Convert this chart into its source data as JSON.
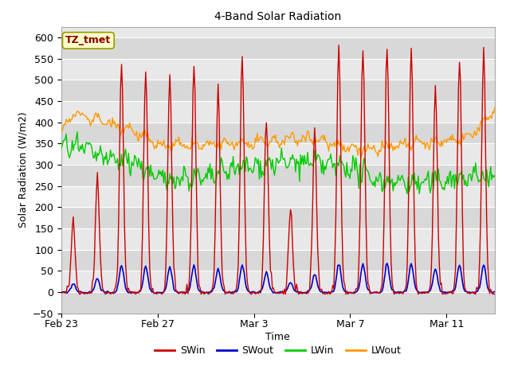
{
  "title": "4-Band Solar Radiation",
  "xlabel": "Time",
  "ylabel": "Solar Radiation (W/m2)",
  "ylim": [
    -50,
    625
  ],
  "yticks": [
    -50,
    0,
    50,
    100,
    150,
    200,
    250,
    300,
    350,
    400,
    450,
    500,
    550,
    600
  ],
  "xtick_labels": [
    "Feb 23",
    "Feb 27",
    "Mar 3",
    "Mar 7",
    "Mar 11"
  ],
  "xtick_positions": [
    0,
    4,
    8,
    12,
    16
  ],
  "annotation_text": "TZ_tmet",
  "annotation_bg": "#ffffcc",
  "annotation_border": "#999900",
  "colors": {
    "SWin": "#cc0000",
    "SWout": "#0000cc",
    "LWin": "#00cc00",
    "LWout": "#ff9900"
  },
  "fig_facecolor": "#ffffff",
  "ax_facecolor": "#e8e8e8",
  "grid_color": "#ffffff",
  "n_days": 18,
  "seed": 42,
  "figsize": [
    6.4,
    4.8
  ],
  "dpi": 100
}
